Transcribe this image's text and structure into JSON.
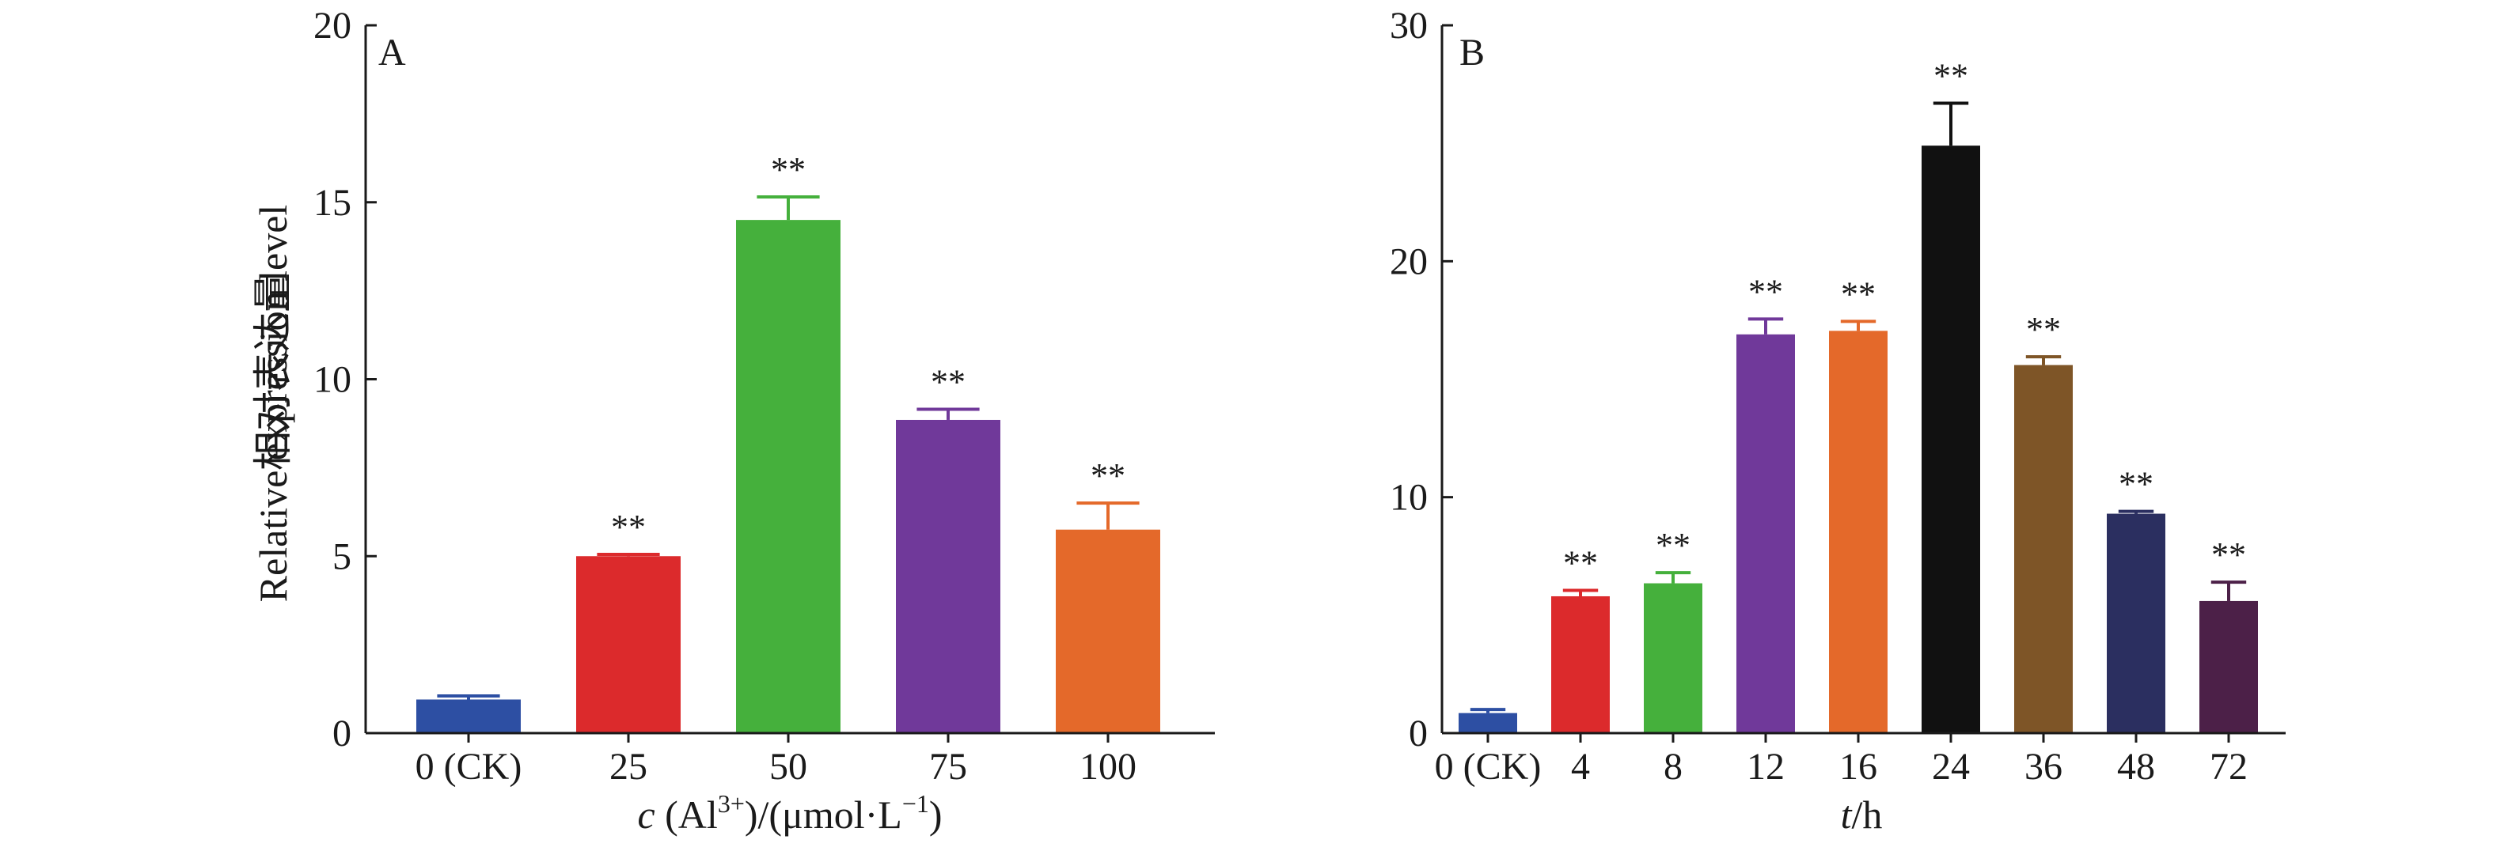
{
  "chart_data": [
    {
      "type": "bar",
      "panel": "A",
      "categories": [
        "0 (CK)",
        "25",
        "50",
        "75",
        "100"
      ],
      "values": [
        0.95,
        5.0,
        14.5,
        8.85,
        5.75
      ],
      "errors": [
        0.1,
        0.05,
        0.65,
        0.3,
        0.75
      ],
      "significance": [
        "",
        "**",
        "**",
        "**",
        "**"
      ],
      "colors": [
        "#2d4fa3",
        "#dc2a2c",
        "#45b03c",
        "#70399a",
        "#e4692a"
      ],
      "ylim": [
        0,
        20
      ],
      "yticks": [
        0,
        5,
        10,
        15,
        20
      ],
      "ylabel_cn": "相对表达量",
      "ylabel_en": "Relative expression level",
      "xlabel": {
        "var": "c",
        "open": " (Al",
        "sup": "3+",
        "mid": ")/(μmol·L",
        "unit_sup": "−1",
        "close": ")"
      }
    },
    {
      "type": "bar",
      "panel": "B",
      "categories": [
        "0 (CK)",
        "4",
        "8",
        "12",
        "16",
        "24",
        "36",
        "48",
        "72"
      ],
      "values": [
        0.85,
        5.8,
        6.35,
        16.9,
        17.05,
        24.9,
        15.6,
        9.3,
        5.6
      ],
      "errors": [
        0.15,
        0.25,
        0.45,
        0.65,
        0.4,
        1.8,
        0.35,
        0.1,
        0.8
      ],
      "significance": [
        "",
        "**",
        "**",
        "**",
        "**",
        "**",
        "**",
        "**",
        "**"
      ],
      "colors": [
        "#2d4fa3",
        "#dc2a2c",
        "#45b03c",
        "#70399a",
        "#e4692a",
        "#111111",
        "#7e5527",
        "#2b2f60",
        "#4c2048"
      ],
      "ylim": [
        0,
        30
      ],
      "yticks": [
        0,
        10,
        20,
        30
      ],
      "xlabel": {
        "var": "t",
        "rest": "/h"
      }
    }
  ]
}
